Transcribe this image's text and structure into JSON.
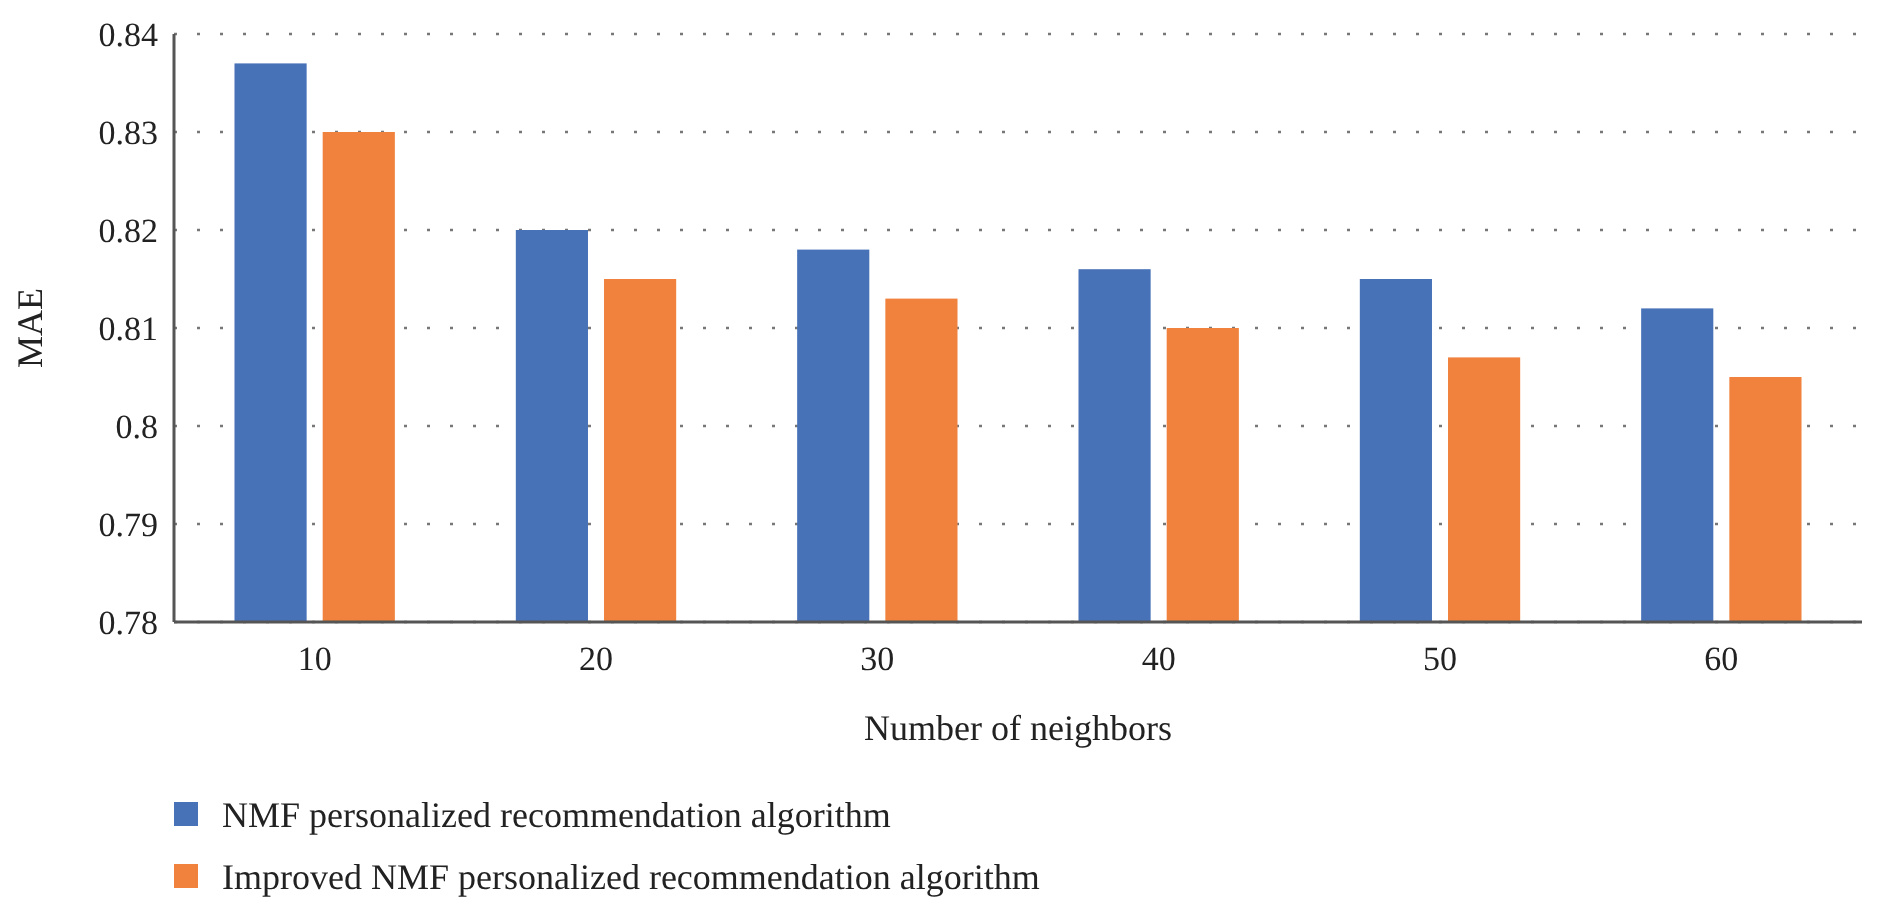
{
  "chart_data": {
    "type": "bar",
    "xlabel": "Number of neighbors",
    "ylabel": "MAE",
    "categories": [
      "10",
      "20",
      "30",
      "40",
      "50",
      "60"
    ],
    "series": [
      {
        "name": "NMF personalized recommendation algorithm",
        "color": "#4872b8",
        "values": [
          0.837,
          0.82,
          0.818,
          0.816,
          0.815,
          0.812
        ]
      },
      {
        "name": "Improved NMF personalized recommendation algorithm",
        "color": "#f0823d",
        "values": [
          0.83,
          0.815,
          0.813,
          0.81,
          0.807,
          0.805
        ]
      }
    ],
    "ylim": [
      0.78,
      0.84
    ],
    "yticks": [
      0.78,
      0.79,
      0.8,
      0.81,
      0.82,
      0.83,
      0.84
    ],
    "grid": "y",
    "legend": "bottom"
  }
}
